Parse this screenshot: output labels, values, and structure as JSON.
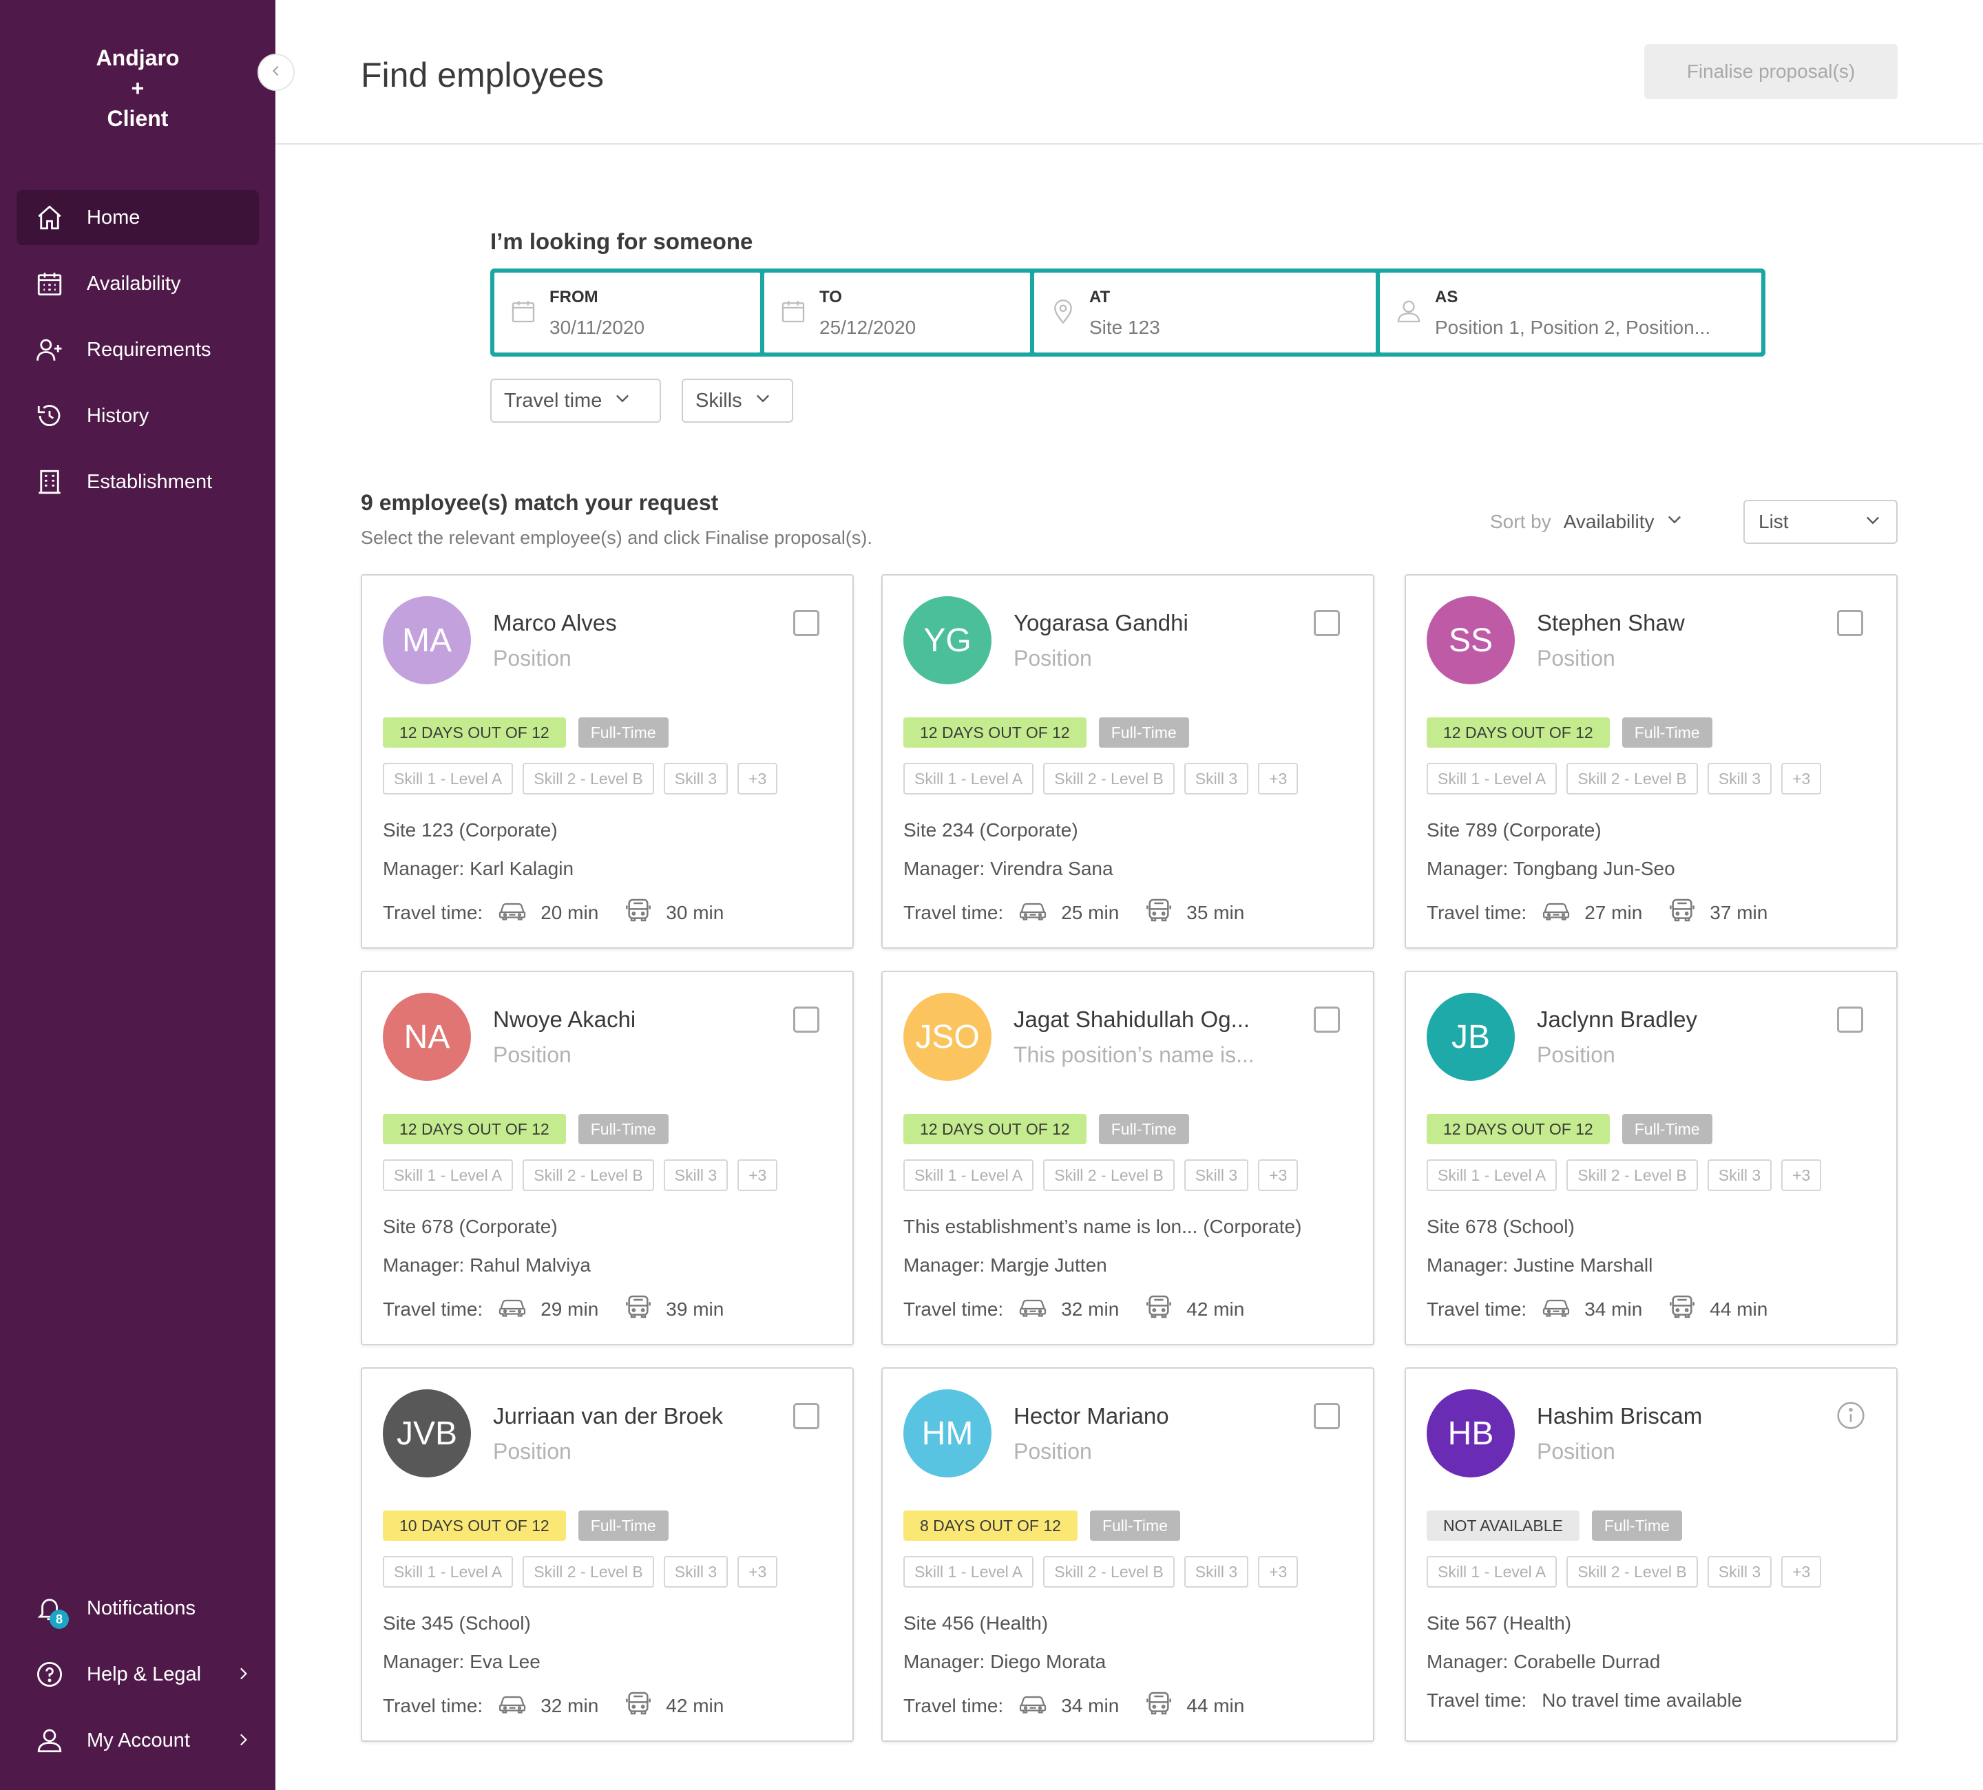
{
  "app": {
    "brand_line1": "Andjaro",
    "brand_line2": "+",
    "brand_line3": "Client"
  },
  "sidebar": {
    "items": [
      {
        "label": "Home",
        "icon": "home-icon",
        "active": true
      },
      {
        "label": "Availability",
        "icon": "calendar-icon"
      },
      {
        "label": "Requirements",
        "icon": "add-user-icon"
      },
      {
        "label": "History",
        "icon": "history-icon"
      },
      {
        "label": "Establishment",
        "icon": "building-icon"
      }
    ],
    "bottom": [
      {
        "label": "Notifications",
        "icon": "bell-icon",
        "badge": "8"
      },
      {
        "label": "Help & Legal",
        "icon": "help-icon"
      },
      {
        "label": "My Account",
        "icon": "user-icon"
      }
    ]
  },
  "header": {
    "title": "Find employees",
    "finalise_label": "Finalise proposal(s)"
  },
  "search": {
    "label": "I’m looking for someone",
    "from": {
      "label": "FROM",
      "value": "30/11/2020"
    },
    "to": {
      "label": "TO",
      "value": "25/12/2020"
    },
    "at": {
      "label": "AT",
      "value": "Site 123"
    },
    "as": {
      "label": "AS",
      "value": "Position 1, Position 2, Position..."
    }
  },
  "filters": {
    "travel": "Travel time",
    "skills": "Skills"
  },
  "results": {
    "title": "9 employee(s) match your request",
    "subtitle": "Select the relevant employee(s) and click Finalise proposal(s).",
    "sort_label": "Sort by",
    "sort_value": "Availability",
    "view_value": "List"
  },
  "card_labels": {
    "travel_label": "Travel time:"
  },
  "colors": {
    "sidebar": "#4f1a4a",
    "accent": "#1aa7a2",
    "green_tag": "#c4ec8e",
    "yellow_tag": "#fbe874",
    "grey_tag": "#e8e8e8"
  },
  "employees": [
    {
      "initials": "MA",
      "avatar_color": "#c3a1dd",
      "name": "Marco Alves",
      "position": "Position",
      "days": "12 DAYS OUT OF 12",
      "days_color": "#c4ec8e",
      "contract": "Full-Time",
      "skills": [
        "Skill 1 - Level A",
        "Skill 2 - Level B",
        "Skill 3",
        "+3"
      ],
      "site": "Site 123 (Corporate)",
      "manager": "Manager: Karl Kalagin",
      "car": "20 min",
      "bus": "30 min",
      "selector": "checkbox"
    },
    {
      "initials": "YG",
      "avatar_color": "#4bbf9a",
      "name": "Yogarasa Gandhi",
      "position": "Position",
      "days": "12 DAYS OUT OF 12",
      "days_color": "#c4ec8e",
      "contract": "Full-Time",
      "skills": [
        "Skill 1 - Level A",
        "Skill 2 - Level B",
        "Skill 3",
        "+3"
      ],
      "site": "Site 234 (Corporate)",
      "manager": "Manager: Virendra Sana",
      "car": "25 min",
      "bus": "35 min",
      "selector": "checkbox"
    },
    {
      "initials": "SS",
      "avatar_color": "#bf5aa6",
      "name": "Stephen Shaw",
      "position": "Position",
      "days": "12 DAYS OUT OF 12",
      "days_color": "#c4ec8e",
      "contract": "Full-Time",
      "skills": [
        "Skill 1 - Level A",
        "Skill 2 - Level B",
        "Skill 3",
        "+3"
      ],
      "site": "Site 789 (Corporate)",
      "manager": "Manager: Tongbang Jun-Seo",
      "car": "27 min",
      "bus": "37 min",
      "selector": "checkbox"
    },
    {
      "initials": "NA",
      "avatar_color": "#e07573",
      "name": "Nwoye Akachi",
      "position": "Position",
      "days": "12 DAYS OUT OF 12",
      "days_color": "#c4ec8e",
      "contract": "Full-Time",
      "skills": [
        "Skill 1 - Level A",
        "Skill 2 - Level B",
        "Skill 3",
        "+3"
      ],
      "site": "Site 678 (Corporate)",
      "manager": "Manager: Rahul Malviya",
      "car": "29 min",
      "bus": "39 min",
      "selector": "checkbox"
    },
    {
      "initials": "JSO",
      "avatar_color": "#fcc45e",
      "name": "Jagat Shahidullah Og...",
      "position": "This position’s name is...",
      "days": "12 DAYS OUT OF 12",
      "days_color": "#c4ec8e",
      "contract": "Full-Time",
      "skills": [
        "Skill 1 - Level A",
        "Skill 2 - Level B",
        "Skill 3",
        "+3"
      ],
      "site": "This establishment’s name is lon... (Corporate)",
      "manager": "Manager: Margje Jutten",
      "car": "32 min",
      "bus": "42 min",
      "selector": "checkbox"
    },
    {
      "initials": "JB",
      "avatar_color": "#1eaaa8",
      "name": "Jaclynn Bradley",
      "position": "Position",
      "days": "12 DAYS OUT OF 12",
      "days_color": "#c4ec8e",
      "contract": "Full-Time",
      "skills": [
        "Skill 1 - Level A",
        "Skill 2 - Level B",
        "Skill 3",
        "+3"
      ],
      "site": "Site 678 (School)",
      "manager": "Manager: Justine Marshall",
      "car": "34 min",
      "bus": "44 min",
      "selector": "checkbox"
    },
    {
      "initials": "JVB",
      "avatar_color": "#585858",
      "name": "Jurriaan van der Broek",
      "position": "Position",
      "days": "10 DAYS OUT OF 12",
      "days_color": "#fbe874",
      "contract": "Full-Time",
      "skills": [
        "Skill 1 - Level A",
        "Skill 2 - Level B",
        "Skill 3",
        "+3"
      ],
      "site": "Site 345 (School)",
      "manager": "Manager: Eva Lee",
      "car": "32 min",
      "bus": "42 min",
      "selector": "checkbox"
    },
    {
      "initials": "HM",
      "avatar_color": "#59c4e2",
      "name": "Hector Mariano",
      "position": "Position",
      "days": "8 DAYS OUT OF 12",
      "days_color": "#fbe874",
      "contract": "Full-Time",
      "skills": [
        "Skill 1 - Level A",
        "Skill 2 - Level B",
        "Skill 3",
        "+3"
      ],
      "site": "Site 456 (Health)",
      "manager": "Manager: Diego Morata",
      "car": "34 min",
      "bus": "44 min",
      "selector": "checkbox"
    },
    {
      "initials": "HB",
      "avatar_color": "#6a2bb5",
      "name": "Hashim Briscam",
      "position": "Position",
      "days": "NOT AVAILABLE",
      "days_color": "#e8e8e8",
      "contract": "Full-Time",
      "skills": [
        "Skill 1 - Level A",
        "Skill 2 - Level B",
        "Skill 3",
        "+3"
      ],
      "site": "Site 567 (Health)",
      "manager": "Manager: Corabelle Durrad",
      "no_travel": "No travel time available",
      "selector": "info"
    }
  ]
}
